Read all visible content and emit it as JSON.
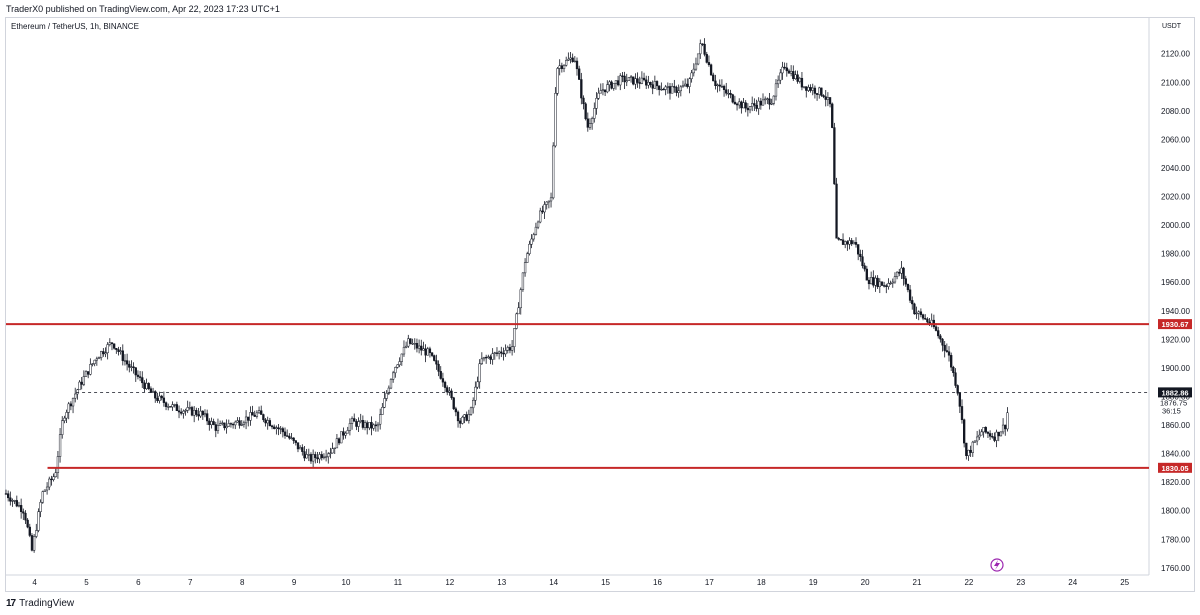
{
  "header": {
    "published_text": "TraderX0 published on TradingView.com, Apr 22, 2023 17:23 UTC+1"
  },
  "chart_header": {
    "symbol": "Ethereum / TetherUS, 1h, BINANCE",
    "currency": "USDT"
  },
  "footer": {
    "logo_text": "17",
    "brand": "TradingView"
  },
  "colors": {
    "candle": "#131722",
    "level_line": "#c62828",
    "level_label_bg": "#c62828",
    "price_label_bg": "#131722",
    "axis_text": "#131722",
    "border": "#d1d4dc",
    "flash_icon": "#9c27b0"
  },
  "chart_data": {
    "type": "candlestick",
    "symbol": "ETHUSDT",
    "interval": "1h",
    "ylim": [
      1755,
      2145
    ],
    "y_ticks": [
      1760,
      1780,
      1800,
      1820,
      1840,
      1860,
      1880,
      1900,
      1920,
      1940,
      1960,
      1980,
      2000,
      2020,
      2040,
      2060,
      2080,
      2100,
      2120
    ],
    "x_ticks": [
      "4",
      "5",
      "6",
      "7",
      "8",
      "9",
      "10",
      "11",
      "12",
      "13",
      "14",
      "15",
      "16",
      "17",
      "18",
      "19",
      "20",
      "21",
      "22",
      "23",
      "24",
      "25"
    ],
    "x_range_days": [
      3.45,
      25.45
    ],
    "price_path": [
      [
        3.45,
        1812
      ],
      [
        3.8,
        1800
      ],
      [
        3.95,
        1772
      ],
      [
        4.15,
        1812
      ],
      [
        4.4,
        1826
      ],
      [
        4.55,
        1866
      ],
      [
        4.9,
        1890
      ],
      [
        5.2,
        1908
      ],
      [
        5.5,
        1918
      ],
      [
        5.8,
        1902
      ],
      [
        6.3,
        1880
      ],
      [
        6.7,
        1872
      ],
      [
        7.2,
        1868
      ],
      [
        7.5,
        1858
      ],
      [
        7.9,
        1862
      ],
      [
        8.3,
        1868
      ],
      [
        8.8,
        1855
      ],
      [
        9.3,
        1836
      ],
      [
        9.7,
        1842
      ],
      [
        10.1,
        1862
      ],
      [
        10.6,
        1858
      ],
      [
        10.9,
        1898
      ],
      [
        11.2,
        1918
      ],
      [
        11.6,
        1910
      ],
      [
        11.9,
        1890
      ],
      [
        12.2,
        1862
      ],
      [
        12.4,
        1868
      ],
      [
        12.6,
        1905
      ],
      [
        12.9,
        1910
      ],
      [
        13.2,
        1915
      ],
      [
        13.45,
        1975
      ],
      [
        13.7,
        2005
      ],
      [
        13.95,
        2018
      ],
      [
        14.05,
        2110
      ],
      [
        14.4,
        2118
      ],
      [
        14.65,
        2068
      ],
      [
        14.9,
        2094
      ],
      [
        15.3,
        2102
      ],
      [
        15.8,
        2100
      ],
      [
        16.3,
        2094
      ],
      [
        16.6,
        2098
      ],
      [
        16.85,
        2128
      ],
      [
        17.1,
        2100
      ],
      [
        17.4,
        2090
      ],
      [
        17.7,
        2082
      ],
      [
        18.2,
        2088
      ],
      [
        18.45,
        2112
      ],
      [
        18.8,
        2098
      ],
      [
        19.2,
        2092
      ],
      [
        19.35,
        2082
      ],
      [
        19.45,
        1988
      ],
      [
        19.8,
        1988
      ],
      [
        20.05,
        1962
      ],
      [
        20.4,
        1958
      ],
      [
        20.7,
        1968
      ],
      [
        20.95,
        1940
      ],
      [
        21.3,
        1930
      ],
      [
        21.6,
        1910
      ],
      [
        21.8,
        1882
      ],
      [
        21.95,
        1838
      ],
      [
        22.25,
        1856
      ],
      [
        22.5,
        1852
      ],
      [
        22.7,
        1860
      ],
      [
        22.78,
        1876.75
      ]
    ],
    "levels": [
      {
        "price": 1930.67,
        "label": "1930.67",
        "start_day": 3.45
      },
      {
        "price": 1830.05,
        "label": "1830.05",
        "start_day": 4.25
      }
    ],
    "current_price": {
      "price": 1882.86,
      "label": "1882.86",
      "last_value": "1876.75",
      "countdown": "36:15"
    }
  }
}
